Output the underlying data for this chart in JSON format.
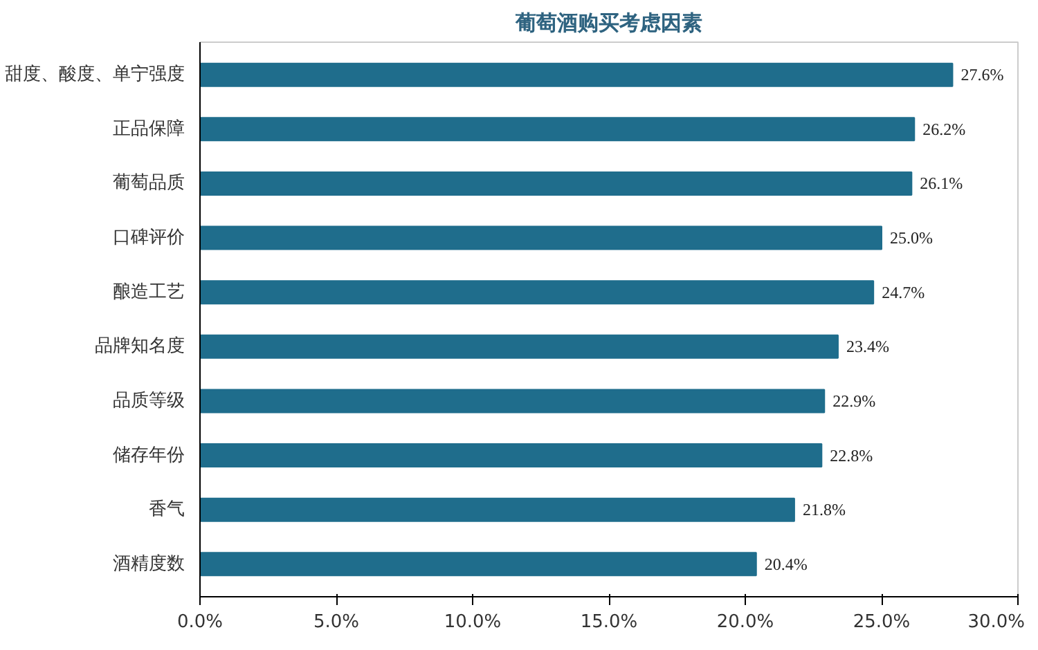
{
  "chart_data": {
    "type": "bar",
    "orientation": "horizontal",
    "title": "葡萄酒购买考虑因素",
    "categories": [
      "甜度、酸度、单宁强度",
      "正品保障",
      "葡萄品质",
      "口碑评价",
      "酿造工艺",
      "品牌知名度",
      "品质等级",
      "储存年份",
      "香气",
      "酒精度数"
    ],
    "values": [
      27.6,
      26.2,
      26.1,
      25.0,
      24.7,
      23.4,
      22.9,
      22.8,
      21.8,
      20.4
    ],
    "value_labels": [
      "27.6%",
      "26.2%",
      "26.1%",
      "25.0%",
      "24.7%",
      "23.4%",
      "22.9%",
      "22.8%",
      "21.8%",
      "20.4%"
    ],
    "color": "#1f6d8c",
    "xlim": [
      0,
      30
    ],
    "xticks": [
      {
        "value": 0,
        "label": "0.0%"
      },
      {
        "value": 5,
        "label": "5.0%"
      },
      {
        "value": 10,
        "label": "10.0%"
      },
      {
        "value": 15,
        "label": "15.0%"
      },
      {
        "value": 20,
        "label": "20.0%"
      },
      {
        "value": 25,
        "label": "25.0%"
      },
      {
        "value": 30,
        "label": "30.0%"
      }
    ],
    "grid": false
  }
}
